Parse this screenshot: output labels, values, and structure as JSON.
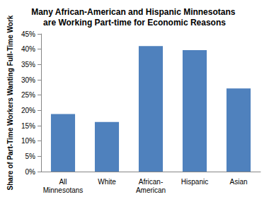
{
  "chart_data": {
    "type": "bar",
    "title": "Many African-American and Hispanic Minnesotans are Working Part-time for Economic Reasons",
    "y_label": "Share of Part-Time Workers Wanting Full-Time Work",
    "categories": [
      "All Minnesotans",
      "White",
      "African-American",
      "Hispanic",
      "Asian"
    ],
    "values": [
      18.8,
      16.2,
      41,
      39.7,
      27.2
    ],
    "color": "#4f81bd",
    "ylim": [
      0,
      45
    ],
    "yticks": [
      {
        "value": 0,
        "label": "0%"
      },
      {
        "value": 5,
        "label": "5%"
      },
      {
        "value": 10,
        "label": "10%"
      },
      {
        "value": 15,
        "label": "15%"
      },
      {
        "value": 20,
        "label": "20%"
      },
      {
        "value": 25,
        "label": "25%"
      },
      {
        "value": 30,
        "label": "30%"
      },
      {
        "value": 35,
        "label": "35%"
      },
      {
        "value": 40,
        "label": "40%"
      },
      {
        "value": 45,
        "label": "45%"
      }
    ],
    "grid": false
  }
}
